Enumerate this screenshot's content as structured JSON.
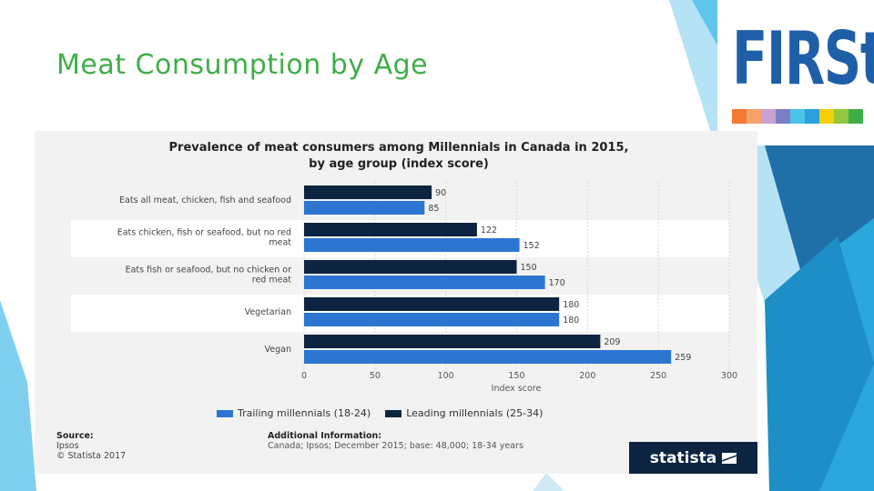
{
  "slide": {
    "title": "Meat Consumption by Age",
    "logo_text": "FIRSt",
    "logo_colors": [
      "#f47a31",
      "#f4a26a",
      "#c9a0d0",
      "#7a7fc4",
      "#4cc3ea",
      "#2aa1dc",
      "#f5d000",
      "#94c840",
      "#3fae49"
    ]
  },
  "chart_data": {
    "type": "bar",
    "orientation": "horizontal",
    "title": "Prevalence of meat consumers among Millennials in Canada in 2015, by age group (index score)",
    "title_line1": "Prevalence of meat consumers among Millennials in Canada in 2015,",
    "title_line2": "by age group (index score)",
    "categories": [
      [
        "Eats all meat, chicken, fish and seafood"
      ],
      [
        "Eats chicken, fish or seafood, but no red",
        "meat"
      ],
      [
        "Eats fish or seafood, but no chicken or",
        "red meat"
      ],
      [
        "Vegetarian"
      ],
      [
        "Vegan"
      ]
    ],
    "series": [
      {
        "name": "Leading millennials (25-34)",
        "color": "#0d2440",
        "values": [
          90,
          122,
          150,
          180,
          209
        ]
      },
      {
        "name": "Trailing millennials (18-24)",
        "color": "#2c76d2",
        "values": [
          85,
          152,
          170,
          180,
          259
        ]
      }
    ],
    "xlabel": "Index score",
    "xlim": [
      0,
      300
    ],
    "xticks": [
      0,
      50,
      100,
      150,
      200,
      250,
      300
    ],
    "legend": {
      "trailing": "Trailing millennials (18-24)",
      "leading": "Leading millennials (25-34)"
    },
    "source": {
      "label": "Source:",
      "name": "Ipsos",
      "copyright": "© Statista 2017"
    },
    "additional": {
      "label": "Additional Information:",
      "text": "Canada; Ipsos; December 2015; base: 48,000; 18-34 years"
    },
    "brand": "statista"
  }
}
